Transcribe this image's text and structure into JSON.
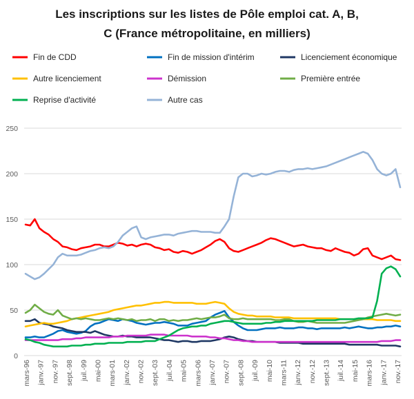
{
  "chart_data": {
    "type": "line",
    "title_lines": [
      "Les inscriptions  sur les listes de Pôle emploi cat. A, B,",
      "C (France métropolitaine,  en milliers)"
    ],
    "xlabel": "",
    "ylabel": "",
    "ylim": [
      0,
      250
    ],
    "y_ticks": [
      0,
      50,
      100,
      150,
      200,
      250
    ],
    "grid": true,
    "legend_position": "top",
    "x_tick_labels": [
      "mars-96",
      "janv.-97",
      "nov.-97",
      "sept.-98",
      "juil.-99",
      "mai-00",
      "mars-01",
      "janv.-02",
      "nov.-02",
      "sept.-03",
      "juil.-04",
      "mai-05",
      "mars-06",
      "janv.-07",
      "nov.-07",
      "sept.-08",
      "juil.-09",
      "mai-10",
      "mars-11",
      "janv.-12",
      "nov.-12",
      "sept.-13",
      "juil.-14",
      "mai-15",
      "mars-16",
      "janv.-17",
      "nov.-17"
    ],
    "series": [
      {
        "name": "Fin de CDD",
        "color": "#ff0000",
        "values": [
          144,
          143,
          150,
          140,
          136,
          133,
          128,
          125,
          120,
          119,
          117,
          116,
          118,
          119,
          120,
          122,
          122,
          120,
          120,
          122,
          124,
          123,
          121,
          122,
          120,
          122,
          123,
          122,
          119,
          118,
          116,
          117,
          114,
          113,
          115,
          114,
          112,
          114,
          116,
          119,
          122,
          126,
          128,
          125,
          118,
          115,
          114,
          116,
          118,
          120,
          122,
          124,
          127,
          129,
          128,
          126,
          124,
          122,
          120,
          121,
          122,
          120,
          119,
          118,
          118,
          116,
          115,
          118,
          116,
          114,
          113,
          110,
          112,
          117,
          118,
          110,
          108,
          106,
          108,
          110,
          106,
          105
        ]
      },
      {
        "name": "Fin de mission d'intérim",
        "color": "#0070c0",
        "values": [
          20,
          20,
          21,
          20,
          20,
          22,
          24,
          27,
          28,
          26,
          25,
          24,
          25,
          27,
          32,
          35,
          36,
          38,
          40,
          39,
          38,
          40,
          39,
          38,
          36,
          35,
          34,
          35,
          36,
          36,
          37,
          36,
          35,
          33,
          33,
          33,
          35,
          36,
          37,
          38,
          42,
          45,
          47,
          49,
          42,
          37,
          33,
          30,
          28,
          28,
          28,
          29,
          30,
          30,
          30,
          31,
          30,
          30,
          30,
          31,
          31,
          30,
          30,
          29,
          30,
          30,
          30,
          30,
          30,
          31,
          30,
          31,
          32,
          31,
          30,
          30,
          31,
          31,
          32,
          32,
          33,
          32
        ]
      },
      {
        "name": "Licenciement économique",
        "color": "#1f3864",
        "values": [
          38,
          38,
          40,
          36,
          35,
          34,
          32,
          31,
          30,
          28,
          27,
          26,
          26,
          26,
          25,
          27,
          25,
          23,
          22,
          21,
          21,
          22,
          21,
          21,
          20,
          20,
          20,
          20,
          19,
          18,
          17,
          17,
          16,
          15,
          16,
          16,
          15,
          15,
          16,
          16,
          16,
          17,
          18,
          20,
          21,
          20,
          18,
          17,
          16,
          16,
          15,
          15,
          15,
          15,
          15,
          14,
          14,
          14,
          14,
          14,
          13,
          13,
          13,
          13,
          13,
          13,
          13,
          13,
          13,
          13,
          12,
          12,
          12,
          12,
          12,
          12,
          12,
          11,
          11,
          11,
          11,
          10
        ]
      },
      {
        "name": "Autre licenciement",
        "color": "#ffc000",
        "values": [
          32,
          33,
          34,
          35,
          36,
          35,
          35,
          36,
          37,
          38,
          40,
          41,
          42,
          43,
          44,
          45,
          46,
          47,
          48,
          50,
          51,
          52,
          53,
          54,
          55,
          55,
          56,
          57,
          58,
          58,
          59,
          59,
          58,
          58,
          58,
          58,
          58,
          57,
          57,
          57,
          58,
          59,
          58,
          57,
          52,
          48,
          46,
          45,
          44,
          44,
          43,
          43,
          43,
          43,
          42,
          42,
          42,
          42,
          41,
          41,
          41,
          41,
          41,
          41,
          41,
          41,
          41,
          41,
          40,
          40,
          40,
          40,
          40,
          40,
          40,
          40,
          39,
          39,
          39,
          39,
          38,
          38
        ]
      },
      {
        "name": "Démission",
        "color": "#cc33cc",
        "values": [
          17,
          17,
          17,
          17,
          17,
          17,
          17,
          17,
          18,
          18,
          18,
          19,
          19,
          20,
          20,
          20,
          20,
          20,
          20,
          21,
          21,
          21,
          22,
          22,
          22,
          22,
          22,
          23,
          23,
          23,
          23,
          22,
          22,
          22,
          22,
          22,
          21,
          21,
          21,
          21,
          20,
          20,
          19,
          19,
          18,
          17,
          17,
          16,
          16,
          15,
          15,
          15,
          15,
          15,
          15,
          15,
          15,
          15,
          15,
          15,
          15,
          15,
          15,
          15,
          15,
          15,
          15,
          15,
          15,
          15,
          15,
          15,
          15,
          15,
          15,
          15,
          15,
          16,
          16,
          16,
          17,
          17
        ]
      },
      {
        "name": "Première entrée",
        "color": "#70ad47",
        "values": [
          47,
          50,
          56,
          52,
          48,
          46,
          45,
          50,
          44,
          42,
          40,
          41,
          40,
          41,
          40,
          39,
          39,
          40,
          41,
          40,
          41,
          40,
          39,
          40,
          38,
          39,
          39,
          40,
          38,
          40,
          40,
          38,
          39,
          38,
          39,
          39,
          40,
          41,
          40,
          41,
          42,
          42,
          43,
          45,
          41,
          40,
          40,
          41,
          40,
          40,
          40,
          40,
          40,
          40,
          39,
          39,
          40,
          40,
          38,
          37,
          37,
          38,
          37,
          36,
          36,
          36,
          36,
          36,
          36,
          36,
          37,
          38,
          39,
          40,
          42,
          43,
          44,
          45,
          46,
          45,
          44,
          45
        ]
      },
      {
        "name": "Reprise d'activité",
        "color": "#00b050",
        "values": [
          18,
          17,
          15,
          14,
          12,
          11,
          10,
          10,
          10,
          10,
          11,
          11,
          11,
          12,
          12,
          13,
          13,
          13,
          14,
          14,
          14,
          14,
          15,
          15,
          15,
          15,
          16,
          16,
          16,
          18,
          20,
          22,
          25,
          28,
          30,
          31,
          32,
          32,
          33,
          33,
          35,
          36,
          37,
          38,
          38,
          37,
          36,
          35,
          35,
          35,
          35,
          35,
          36,
          36,
          37,
          37,
          38,
          38,
          38,
          38,
          38,
          38,
          38,
          39,
          39,
          39,
          39,
          39,
          40,
          40,
          40,
          40,
          41,
          41,
          41,
          42,
          60,
          90,
          96,
          98,
          95,
          87
        ]
      },
      {
        "name": "Autre cas",
        "color": "#95b3d7",
        "values": [
          90,
          87,
          84,
          86,
          90,
          95,
          100,
          108,
          112,
          110,
          110,
          110,
          111,
          113,
          115,
          116,
          118,
          119,
          118,
          120,
          125,
          132,
          136,
          140,
          142,
          130,
          128,
          130,
          131,
          132,
          133,
          133,
          132,
          134,
          135,
          136,
          137,
          137,
          136,
          136,
          136,
          135,
          135,
          142,
          150,
          175,
          196,
          200,
          200,
          197,
          198,
          200,
          199,
          200,
          202,
          203,
          203,
          202,
          204,
          205,
          205,
          206,
          205,
          206,
          207,
          208,
          210,
          212,
          214,
          216,
          218,
          220,
          222,
          224,
          222,
          215,
          205,
          200,
          198,
          200,
          205,
          185
        ]
      }
    ]
  }
}
